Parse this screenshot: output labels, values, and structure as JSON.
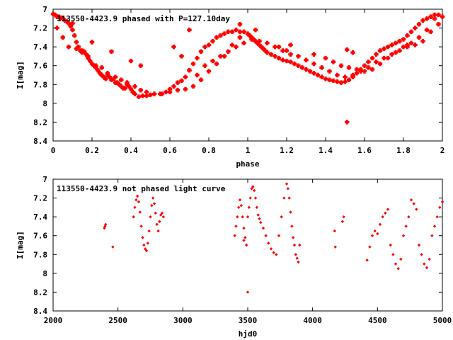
{
  "chart_data": [
    {
      "type": "scatter",
      "title": "113550-4423.9 phased with P=127.10day",
      "xlabel": "phase",
      "ylabel": "I[mag]",
      "xlim": [
        0,
        2
      ],
      "ylim": [
        8.4,
        7
      ],
      "y_inverted": true,
      "x_ticks": [
        "0",
        "0.2",
        "0.4",
        "0.6",
        "0.8",
        "1",
        "1.2",
        "1.4",
        "1.6",
        "1.8",
        "2"
      ],
      "y_ticks": [
        "7",
        "7.2",
        "7.4",
        "7.6",
        "7.8",
        "8",
        "8.2",
        "8.4"
      ],
      "marker": "diamond-block",
      "color": "#ff0000",
      "grid": false,
      "series": [
        {
          "x": [
            0.0,
            0.01,
            0.02,
            0.03,
            0.04,
            0.05,
            0.06,
            0.07,
            0.08,
            0.09,
            0.1,
            0.11,
            0.12,
            0.13,
            0.14,
            0.15,
            0.16,
            0.17,
            0.18,
            0.19,
            0.2,
            0.21,
            0.22,
            0.23,
            0.24,
            0.25,
            0.26,
            0.27,
            0.28,
            0.29,
            0.3,
            0.31,
            0.32,
            0.33,
            0.34,
            0.35,
            0.36,
            0.37,
            0.38,
            0.39,
            0.4,
            0.41,
            0.42,
            0.44,
            0.46,
            0.48,
            0.5,
            0.52,
            0.55,
            0.58,
            0.6,
            0.62,
            0.64,
            0.66,
            0.68,
            0.7,
            0.72,
            0.74,
            0.76,
            0.78,
            0.8,
            0.82,
            0.84,
            0.86,
            0.88,
            0.9,
            0.92,
            0.94,
            0.96,
            0.98,
            1.0,
            1.01,
            1.02,
            1.03,
            1.04,
            1.05,
            1.06,
            1.07,
            1.08,
            1.09,
            1.1,
            1.12,
            1.14,
            1.16,
            1.18,
            1.2,
            1.22,
            1.24,
            1.26,
            1.28,
            1.3,
            1.32,
            1.34,
            1.36,
            1.38,
            1.4,
            1.42,
            1.44,
            1.46,
            1.48,
            1.5,
            1.52,
            1.54,
            1.56,
            1.58,
            1.6,
            1.62,
            1.64,
            1.66,
            1.68,
            1.7,
            1.72,
            1.74,
            1.76,
            1.78,
            1.8,
            1.82,
            1.84,
            1.86,
            1.88,
            1.9,
            1.92,
            1.94,
            1.96,
            1.98,
            2.0,
            0.02,
            0.05,
            0.08,
            0.12,
            0.15,
            0.18,
            0.22,
            0.25,
            0.28,
            0.32,
            0.35,
            0.38,
            0.42,
            0.45,
            0.48,
            0.52,
            0.56,
            0.6,
            0.64,
            0.68,
            0.72,
            0.76,
            0.8,
            0.84,
            0.88,
            0.92,
            0.96,
            1.02,
            1.06,
            1.1,
            1.14,
            1.18,
            1.22,
            1.26,
            1.3,
            1.34,
            1.38,
            1.42,
            1.46,
            1.5,
            1.54,
            1.58,
            1.62,
            1.66,
            1.7,
            1.74,
            1.78,
            1.82,
            1.86,
            1.9,
            1.94,
            1.98,
            0.1,
            0.2,
            0.3,
            0.4,
            0.45,
            0.62,
            0.66,
            0.7,
            0.74,
            0.78,
            0.82,
            0.86,
            0.9,
            0.94,
            0.98,
            1.16,
            1.2,
            1.34,
            1.4,
            1.44,
            1.48,
            1.52,
            1.56,
            1.6,
            1.64,
            1.68,
            1.72,
            1.76,
            1.8,
            1.84,
            1.88,
            1.92,
            1.96,
            1.51,
            1.51,
            1.54,
            1.04,
            1.22,
            1.82,
            0.7,
            0.96,
            0.96
          ],
          "y": [
            7.05,
            7.06,
            7.08,
            7.08,
            7.09,
            7.1,
            7.12,
            7.13,
            7.15,
            7.18,
            7.22,
            7.28,
            7.35,
            7.4,
            7.44,
            7.46,
            7.45,
            7.48,
            7.52,
            7.55,
            7.58,
            7.6,
            7.62,
            7.65,
            7.68,
            7.7,
            7.72,
            7.74,
            7.7,
            7.72,
            7.75,
            7.74,
            7.78,
            7.78,
            7.8,
            7.82,
            7.84,
            7.84,
            7.8,
            7.82,
            7.85,
            7.88,
            7.9,
            7.93,
            7.92,
            7.92,
            7.91,
            7.9,
            7.9,
            7.88,
            7.85,
            7.82,
            7.78,
            7.76,
            7.72,
            7.65,
            7.58,
            7.52,
            7.45,
            7.4,
            7.38,
            7.34,
            7.3,
            7.28,
            7.26,
            7.24,
            7.24,
            7.22,
            7.24,
            7.24,
            7.26,
            7.28,
            7.3,
            7.32,
            7.34,
            7.36,
            7.38,
            7.4,
            7.42,
            7.44,
            7.46,
            7.48,
            7.5,
            7.52,
            7.54,
            7.55,
            7.56,
            7.58,
            7.6,
            7.62,
            7.64,
            7.66,
            7.68,
            7.7,
            7.72,
            7.74,
            7.75,
            7.76,
            7.77,
            7.78,
            7.77,
            7.75,
            7.72,
            7.68,
            7.64,
            7.6,
            7.56,
            7.52,
            7.48,
            7.44,
            7.42,
            7.4,
            7.38,
            7.36,
            7.34,
            7.32,
            7.28,
            7.24,
            7.2,
            7.16,
            7.12,
            7.1,
            7.08,
            7.06,
            7.06,
            7.08,
            7.2,
            7.3,
            7.4,
            7.42,
            7.44,
            7.5,
            7.6,
            7.62,
            7.68,
            7.72,
            7.75,
            7.78,
            7.82,
            7.86,
            7.88,
            7.9,
            7.9,
            7.88,
            7.86,
            7.85,
            7.82,
            7.75,
            7.66,
            7.58,
            7.5,
            7.38,
            7.3,
            7.32,
            7.34,
            7.36,
            7.4,
            7.44,
            7.48,
            7.5,
            7.54,
            7.58,
            7.62,
            7.66,
            7.7,
            7.72,
            7.7,
            7.66,
            7.62,
            7.56,
            7.52,
            7.48,
            7.44,
            7.4,
            7.38,
            7.34,
            7.24,
            7.16,
            7.15,
            7.35,
            7.45,
            7.55,
            7.6,
            7.4,
            7.5,
            7.65,
            7.7,
            7.6,
            7.55,
            7.5,
            7.45,
            7.4,
            7.36,
            7.4,
            7.44,
            7.48,
            7.52,
            7.56,
            7.6,
            7.62,
            7.64,
            7.66,
            7.64,
            7.58,
            7.52,
            7.46,
            7.4,
            7.36,
            7.3,
            7.22,
            7.1,
            8.2,
            7.43,
            7.46,
            7.22,
            7.38,
            7.38,
            7.22,
            7.16,
            7.3
          ]
        }
      ]
    },
    {
      "type": "scatter",
      "title": "113550-4423.9 not phased light curve",
      "xlabel": "hjd0",
      "ylabel": "I[mag]",
      "xlim": [
        2000,
        5000
      ],
      "ylim": [
        8.4,
        7
      ],
      "y_inverted": true,
      "x_ticks": [
        "2000",
        "2500",
        "3000",
        "3500",
        "4000",
        "4500",
        "5000"
      ],
      "y_ticks": [
        "7",
        "7.2",
        "7.4",
        "7.6",
        "7.8",
        "8",
        "8.2",
        "8.4"
      ],
      "marker": "diamond-small",
      "color": "#ff0000",
      "grid": false,
      "series": [
        {
          "x": [
            2395,
            2400,
            2405,
            2460,
            2620,
            2630,
            2640,
            2650,
            2660,
            2670,
            2680,
            2690,
            2700,
            2710,
            2720,
            2730,
            2740,
            2750,
            2760,
            2770,
            2780,
            2790,
            2800,
            2810,
            2820,
            2830,
            2840,
            2850,
            3400,
            3410,
            3420,
            3430,
            3440,
            3450,
            3460,
            3470,
            3480,
            3490,
            3500,
            3510,
            3520,
            3530,
            3540,
            3550,
            3560,
            3570,
            3580,
            3590,
            3600,
            3620,
            3640,
            3660,
            3680,
            3700,
            3720,
            3740,
            3760,
            3780,
            3800,
            3810,
            3820,
            3830,
            3840,
            3850,
            3860,
            3870,
            3880,
            3890,
            3900,
            4170,
            4175,
            4230,
            4240,
            4420,
            4440,
            4460,
            4480,
            4500,
            4520,
            4540,
            4560,
            4580,
            4600,
            4620,
            4640,
            4660,
            4680,
            4700,
            4720,
            4740,
            4760,
            4780,
            4800,
            4820,
            4840,
            4860,
            4880,
            4900,
            4920,
            4940,
            4960,
            4980,
            5000,
            3500,
            3470
          ],
          "y": [
            7.52,
            7.5,
            7.48,
            7.72,
            7.4,
            7.3,
            7.22,
            7.18,
            7.24,
            7.35,
            7.5,
            7.62,
            7.7,
            7.74,
            7.76,
            7.68,
            7.55,
            7.4,
            7.28,
            7.2,
            7.26,
            7.36,
            7.48,
            7.55,
            7.45,
            7.38,
            7.36,
            7.4,
            7.6,
            7.5,
            7.4,
            7.3,
            7.22,
            7.28,
            7.4,
            7.52,
            7.62,
            7.7,
            7.4,
            7.3,
            7.2,
            7.1,
            7.08,
            7.12,
            7.2,
            7.3,
            7.38,
            7.42,
            7.46,
            7.52,
            7.6,
            7.68,
            7.74,
            7.78,
            7.8,
            7.6,
            7.4,
            7.2,
            7.05,
            7.1,
            7.2,
            7.35,
            7.5,
            7.62,
            7.7,
            7.8,
            7.84,
            7.88,
            7.7,
            7.55,
            7.72,
            7.45,
            7.4,
            7.86,
            7.72,
            7.6,
            7.55,
            7.58,
            7.48,
            7.4,
            7.36,
            7.32,
            7.7,
            7.8,
            7.9,
            7.95,
            7.85,
            7.6,
            7.5,
            7.4,
            7.22,
            7.26,
            7.32,
            7.7,
            7.8,
            7.9,
            7.94,
            7.85,
            7.6,
            7.5,
            7.4,
            7.3,
            7.24,
            8.2,
            7.65
          ]
        }
      ]
    }
  ]
}
